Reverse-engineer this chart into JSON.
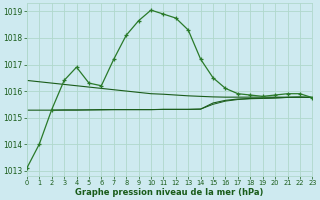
{
  "title": "Graphe pression niveau de la mer (hPa)",
  "bg_color": "#ceeaf0",
  "grid_color": "#b0d8cc",
  "line_color_dark": "#1a5c1a",
  "line_color_med": "#2a7a2a",
  "xlim": [
    0,
    23
  ],
  "ylim": [
    1012.8,
    1019.3
  ],
  "yticks": [
    1013,
    1014,
    1015,
    1016,
    1017,
    1018,
    1019
  ],
  "xticks": [
    0,
    1,
    2,
    3,
    4,
    5,
    6,
    7,
    8,
    9,
    10,
    11,
    12,
    13,
    14,
    15,
    16,
    17,
    18,
    19,
    20,
    21,
    22,
    23
  ],
  "series_main": {
    "x": [
      0,
      1,
      2,
      3,
      4,
      5,
      6,
      7,
      8,
      9,
      10,
      11,
      12,
      13,
      14,
      15,
      16,
      17,
      18,
      19,
      20,
      21,
      22,
      23
    ],
    "y": [
      1013.1,
      1014.0,
      1015.3,
      1016.4,
      1016.9,
      1016.3,
      1016.2,
      1017.2,
      1018.1,
      1018.65,
      1019.05,
      1018.9,
      1018.75,
      1018.3,
      1017.2,
      1016.5,
      1016.1,
      1015.9,
      1015.85,
      1015.8,
      1015.85,
      1015.9,
      1015.9,
      1015.75
    ]
  },
  "series_flat1": {
    "x": [
      0,
      1,
      2,
      3,
      4,
      5,
      6,
      7,
      8,
      9,
      10,
      11,
      12,
      13,
      14,
      15,
      16,
      17,
      18,
      19,
      20,
      21,
      22,
      23
    ],
    "y": [
      1016.4,
      1016.35,
      1016.3,
      1016.25,
      1016.2,
      1016.15,
      1016.1,
      1016.05,
      1016.0,
      1015.95,
      1015.9,
      1015.88,
      1015.85,
      1015.82,
      1015.8,
      1015.78,
      1015.77,
      1015.77,
      1015.77,
      1015.77,
      1015.77,
      1015.77,
      1015.77,
      1015.76
    ]
  },
  "series_flat2": {
    "x": [
      0,
      1,
      2,
      3,
      4,
      5,
      6,
      7,
      8,
      9,
      10,
      11,
      12,
      13,
      14,
      15,
      16,
      17,
      18,
      19,
      20,
      21,
      22,
      23
    ],
    "y": [
      1015.28,
      1015.28,
      1015.28,
      1015.29,
      1015.29,
      1015.29,
      1015.3,
      1015.3,
      1015.3,
      1015.3,
      1015.3,
      1015.31,
      1015.31,
      1015.31,
      1015.32,
      1015.55,
      1015.65,
      1015.7,
      1015.72,
      1015.73,
      1015.74,
      1015.76,
      1015.77,
      1015.76
    ]
  },
  "series_flat3": {
    "x": [
      2,
      3,
      4,
      5,
      6,
      7,
      8,
      9,
      10,
      11,
      12,
      13,
      14,
      15,
      16,
      17,
      18,
      19,
      20,
      21,
      22,
      23
    ],
    "y": [
      1015.28,
      1015.28,
      1015.28,
      1015.29,
      1015.29,
      1015.3,
      1015.3,
      1015.3,
      1015.3,
      1015.31,
      1015.31,
      1015.31,
      1015.32,
      1015.5,
      1015.62,
      1015.68,
      1015.71,
      1015.72,
      1015.74,
      1015.76,
      1015.77,
      1015.76
    ]
  }
}
